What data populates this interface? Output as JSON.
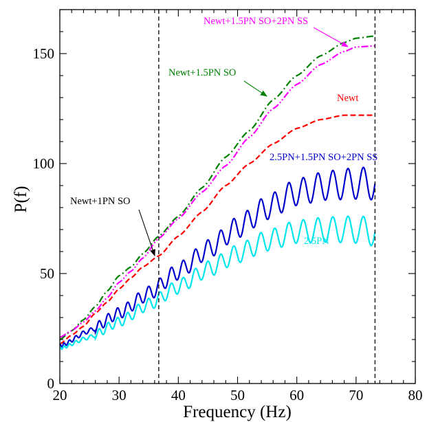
{
  "chart_data": {
    "type": "line",
    "xlabel": "Frequency (Hz)",
    "ylabel": "P(f)",
    "xlim": [
      20,
      80
    ],
    "ylim": [
      0,
      170
    ],
    "x_ticks": [
      20,
      30,
      40,
      50,
      60,
      70,
      80
    ],
    "y_ticks": [
      0,
      50,
      100,
      150
    ],
    "vlines": [
      36.7,
      73.2
    ],
    "grid": false,
    "series": [
      {
        "name": "Newt+1.5PN SO",
        "color": "#008000",
        "dash": "dashdot",
        "x": [
          20,
          22,
          24,
          26,
          28,
          30,
          32,
          34,
          36.7,
          40,
          44,
          48,
          52,
          56,
          60,
          64,
          68,
          70,
          73.2
        ],
        "y": [
          20,
          24,
          29,
          35,
          42,
          49,
          53,
          59,
          67,
          76,
          89,
          103,
          115,
          129,
          140,
          149,
          155,
          157,
          158
        ]
      },
      {
        "name": "Newt+1.5PN SO+2PN SS",
        "color": "#ff00ff",
        "dash": "dashdotdot",
        "x": [
          20,
          22,
          24,
          26,
          28,
          30,
          32,
          34,
          36.7,
          40,
          44,
          48,
          52,
          56,
          60,
          64,
          68,
          70,
          73.2
        ],
        "y": [
          21,
          24,
          28,
          33,
          39,
          46,
          51,
          57,
          66,
          75,
          87,
          99,
          112,
          125,
          136,
          145,
          151,
          153,
          153.5
        ]
      },
      {
        "name": "Newt",
        "color": "#ff0000",
        "dash": "dashed",
        "x": [
          20,
          22,
          24,
          26,
          28,
          30,
          32,
          34,
          36.7,
          40,
          44,
          48,
          52,
          56,
          60,
          64,
          68,
          70,
          73.2
        ],
        "y": [
          18,
          22,
          26,
          32,
          37,
          43,
          48,
          53,
          58,
          67,
          78,
          90,
          100,
          109,
          116,
          120,
          122,
          122,
          122
        ]
      },
      {
        "name": "2.5PN+1.5PN SO+2PN SS",
        "color": "#0000cc",
        "dash": "solid",
        "x": [
          20,
          25,
          30,
          35,
          40,
          45,
          50,
          55,
          60,
          65,
          70,
          73.2
        ],
        "y": [
          17,
          24,
          32,
          41,
          51,
          61,
          71,
          80,
          87,
          90,
          91,
          91
        ],
        "oscillation": {
          "start": 26.0,
          "amp_start": 1.5,
          "amp_end": 7.5,
          "cycles": 28
        }
      },
      {
        "name": "2.5PN",
        "color": "#00e5ee",
        "dash": "solid",
        "x": [
          20,
          25,
          30,
          35,
          40,
          45,
          50,
          55,
          60,
          65,
          70,
          73.2
        ],
        "y": [
          16,
          21,
          28,
          36,
          44,
          52,
          59,
          65,
          69,
          70,
          70,
          69
        ],
        "oscillation": {
          "start": 26.0,
          "amp_start": 1.2,
          "amp_end": 6.5,
          "cycles": 28
        }
      }
    ],
    "annotations": [
      {
        "text": "Newt+1.5PN SO+2PN SS",
        "color": "#ff00ff"
      },
      {
        "text": "Newt+1.5PN SO",
        "color": "#008000"
      },
      {
        "text": "Newt",
        "color": "#ff0000"
      },
      {
        "text": "2.5PN+1.5PN SO+2PN SS",
        "color": "#0000cc"
      },
      {
        "text": "Newt+1PN SO",
        "color": "#000000"
      },
      {
        "text": "2.5PN",
        "color": "#00e5ee"
      }
    ]
  }
}
